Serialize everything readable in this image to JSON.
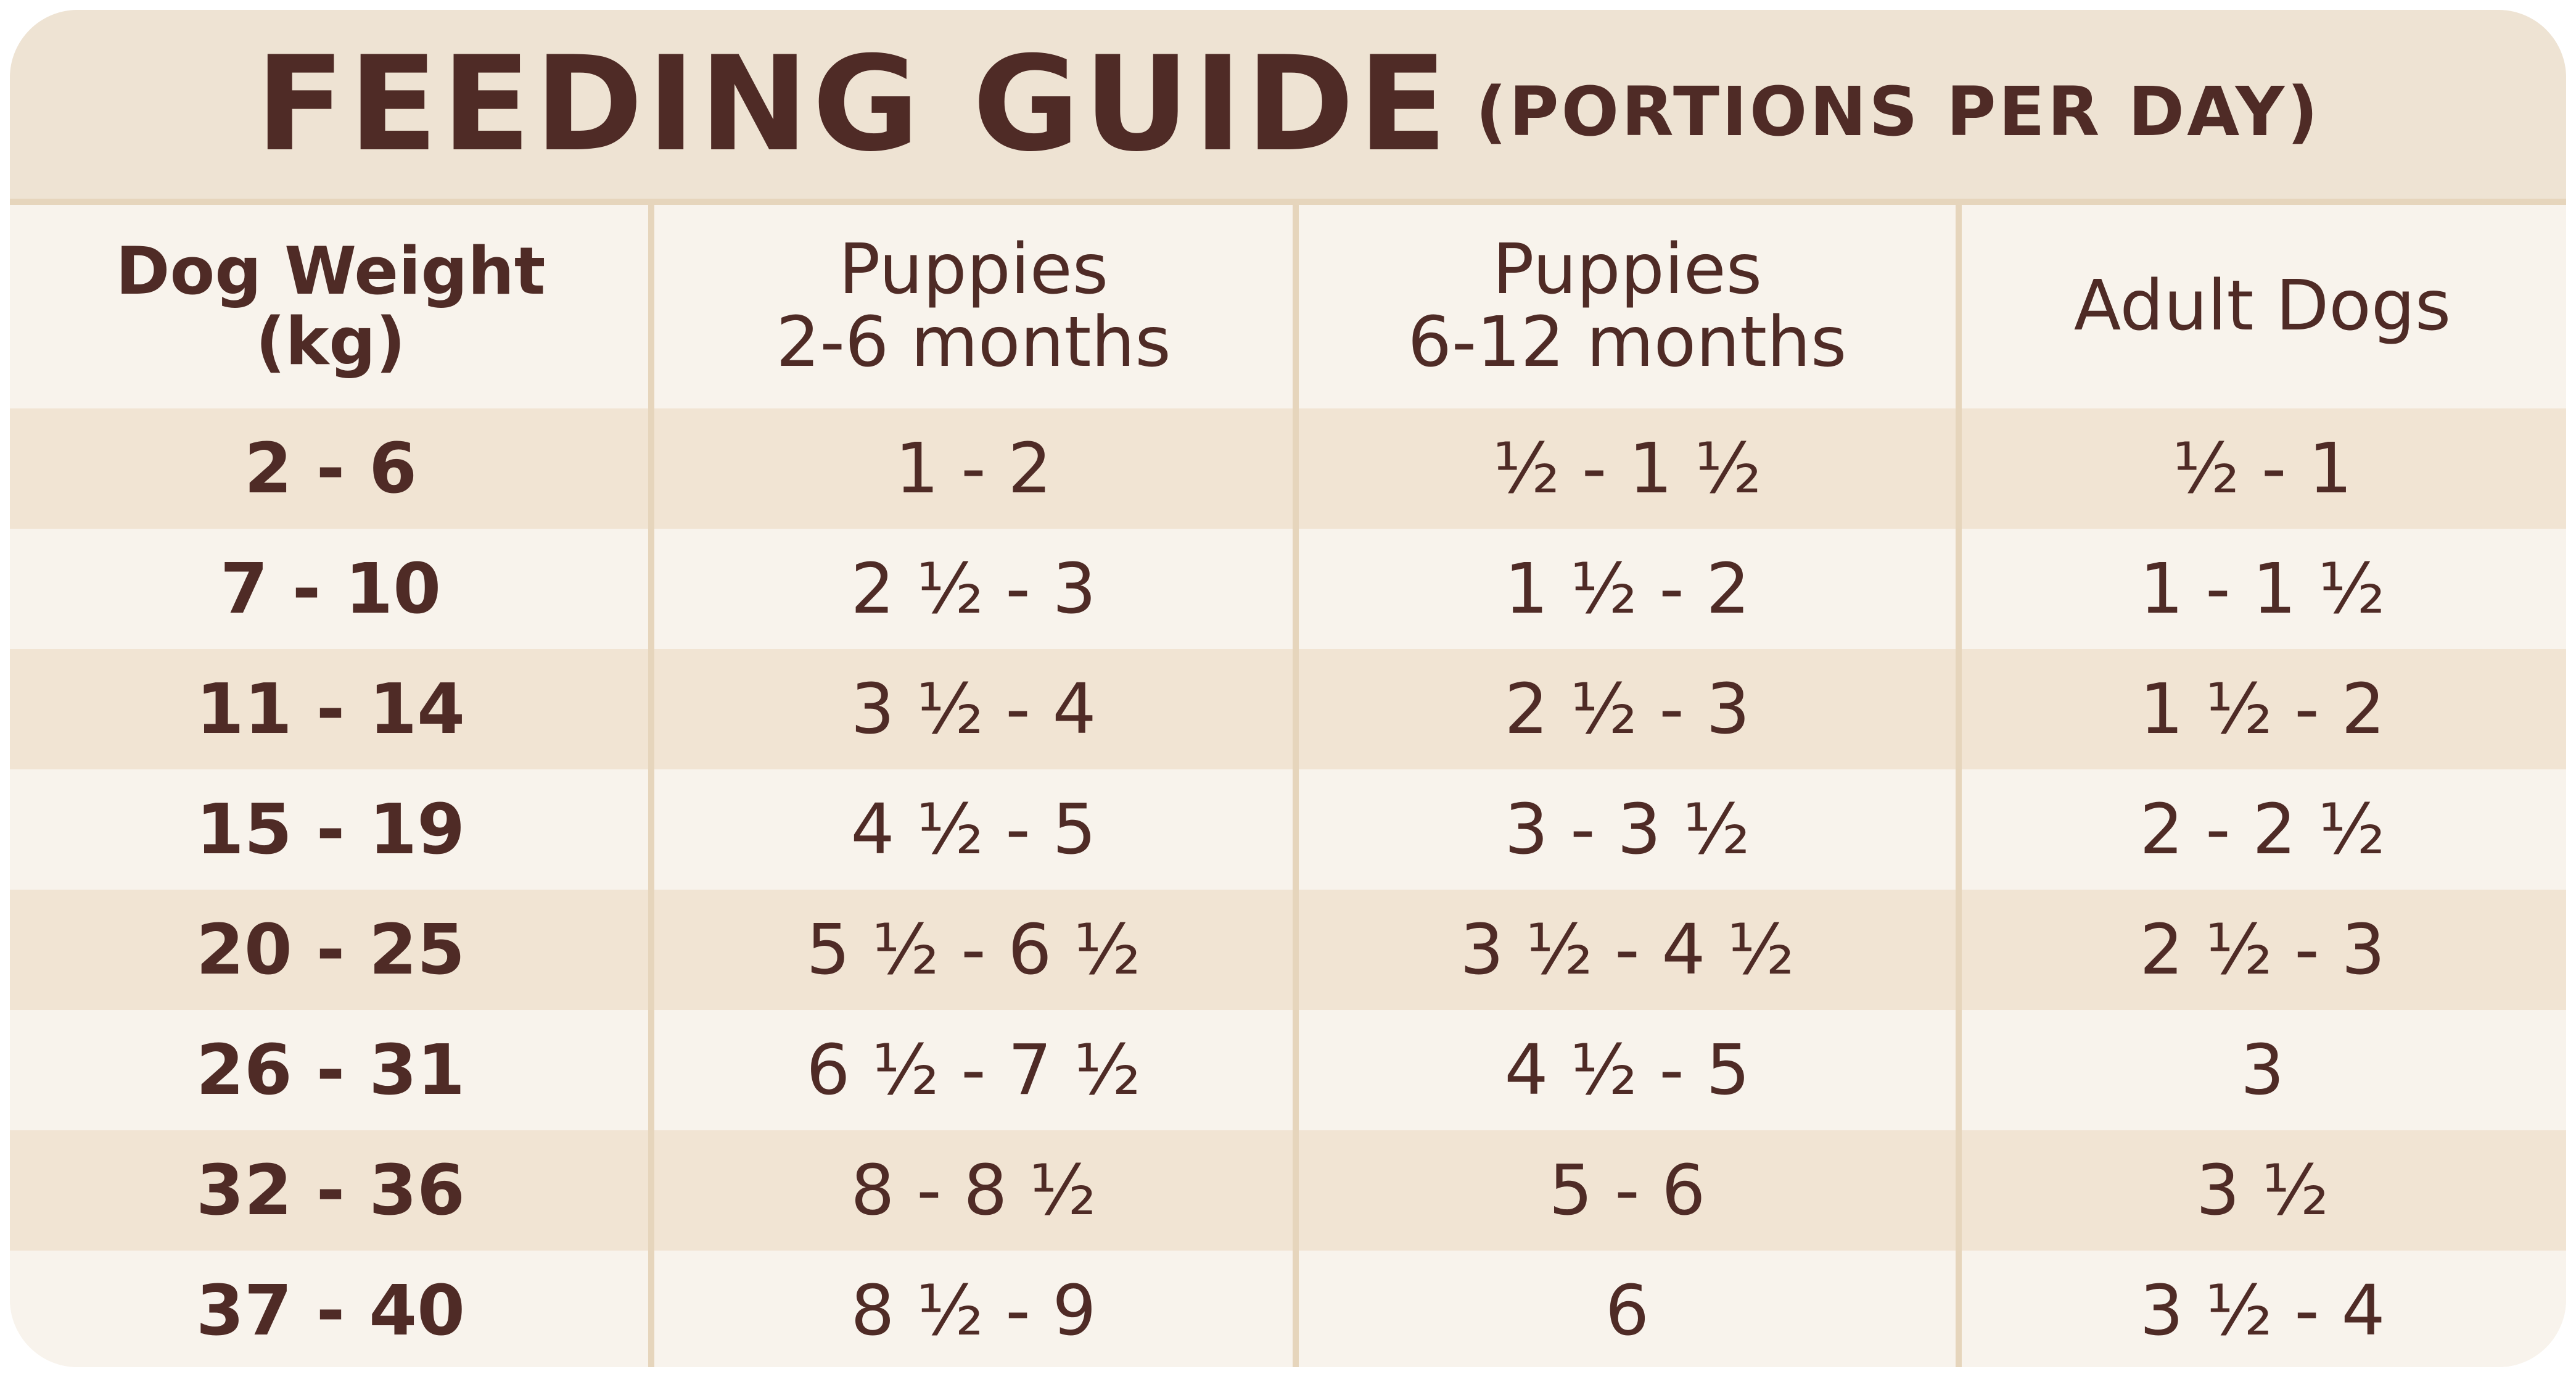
{
  "title": {
    "main": "FEEDING GUIDE",
    "sub": "(PORTIONS PER DAY)"
  },
  "columns": [
    {
      "line1": "Dog Weight",
      "line2": "(kg)"
    },
    {
      "line1": "Puppies",
      "line2": "2-6 months"
    },
    {
      "line1": "Puppies",
      "line2": "6-12 months"
    },
    {
      "line1": "Adult Dogs",
      "line2": ""
    }
  ],
  "rows": [
    {
      "weight": "2 - 6",
      "pup_2_6": "1 - 2",
      "pup_6_12": "½ - 1 ½",
      "adult": "½ - 1"
    },
    {
      "weight": "7 - 10",
      "pup_2_6": "2 ½ - 3",
      "pup_6_12": "1 ½ - 2",
      "adult": "1 - 1 ½"
    },
    {
      "weight": "11 - 14",
      "pup_2_6": "3 ½ - 4",
      "pup_6_12": "2 ½ - 3",
      "adult": "1 ½ - 2"
    },
    {
      "weight": "15 - 19",
      "pup_2_6": "4 ½ - 5",
      "pup_6_12": "3 - 3 ½",
      "adult": "2 - 2 ½"
    },
    {
      "weight": "20 - 25",
      "pup_2_6": "5 ½ - 6 ½",
      "pup_6_12": "3 ½ - 4 ½",
      "adult": "2 ½ - 3"
    },
    {
      "weight": "26 - 31",
      "pup_2_6": "6 ½ - 7 ½",
      "pup_6_12": "4 ½ - 5",
      "adult": "3"
    },
    {
      "weight": "32 - 36",
      "pup_2_6": "8 - 8 ½",
      "pup_6_12": "5 - 6",
      "adult": "3 ½"
    },
    {
      "weight": "37 - 40",
      "pup_2_6": "8 ½ - 9",
      "pup_6_12": "6",
      "adult": "3 ½ - 4"
    }
  ],
  "colors": {
    "text": "#4f2b26",
    "header_band": "#eee3d3",
    "row_shaded": "#f1e4d3",
    "row_plain": "#f8f3ec",
    "divider": "#e6d5bc"
  }
}
